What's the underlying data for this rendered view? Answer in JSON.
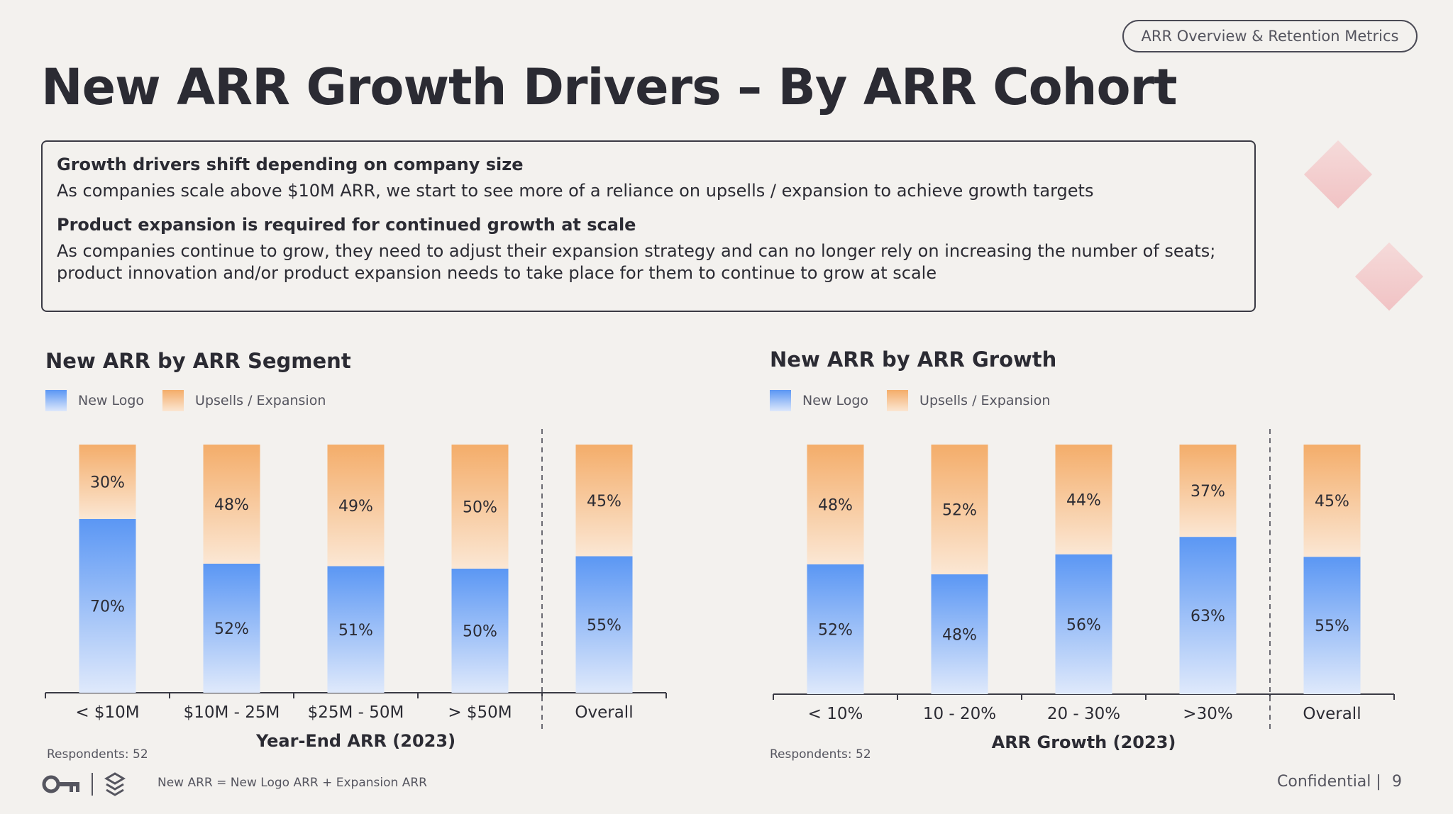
{
  "header": {
    "tag": "ARR Overview & Retention Metrics",
    "title": "New ARR Growth Drivers – By ARR Cohort"
  },
  "summary": {
    "heading1": "Growth drivers shift depending on company size",
    "body1": "As companies scale above $10M ARR, we start to see more of a reliance on upsells / expansion to achieve growth targets",
    "heading2": "Product expansion is required for continued growth at scale",
    "body2": "As companies continue to grow, they need to adjust their expansion strategy and can no longer rely on increasing the number of seats; product innovation and/or product expansion needs to take place for them to continue to grow at scale"
  },
  "colors": {
    "new_logo": "#5b97f4",
    "expansion": "#f4ad6a",
    "text": "#2b2b33"
  },
  "chart_data": [
    {
      "type": "bar",
      "stacked": true,
      "normalized": true,
      "title": "New ARR by ARR Segment",
      "xlabel": "Year-End ARR (2023)",
      "categories": [
        "< $10M",
        "$10M - 25M",
        "$25M - 50M",
        "> $50M",
        "Overall"
      ],
      "series": [
        {
          "name": "New Logo",
          "values": [
            70,
            52,
            51,
            50,
            55
          ]
        },
        {
          "name": "Upsells / Expansion",
          "values": [
            30,
            48,
            49,
            50,
            45
          ]
        }
      ],
      "legend_position": "top-left",
      "footnote": "Respondents: 52"
    },
    {
      "type": "bar",
      "stacked": true,
      "normalized": true,
      "title": "New ARR by ARR Growth",
      "xlabel": "ARR Growth (2023)",
      "categories": [
        "< 10%",
        "10 - 20%",
        "20 - 30%",
        ">30%",
        "Overall"
      ],
      "series": [
        {
          "name": "New Logo",
          "values": [
            52,
            48,
            56,
            63,
            55
          ]
        },
        {
          "name": "Upsells / Expansion",
          "values": [
            48,
            52,
            44,
            37,
            45
          ]
        }
      ],
      "legend_position": "top-left",
      "footnote": "Respondents: 52"
    }
  ],
  "footer": {
    "note": "New ARR = New Logo ARR + Expansion ARR",
    "confidential": "Confidential |",
    "page": "9",
    "logo_icons": [
      "key-icon",
      "stack-logo-icon"
    ]
  }
}
